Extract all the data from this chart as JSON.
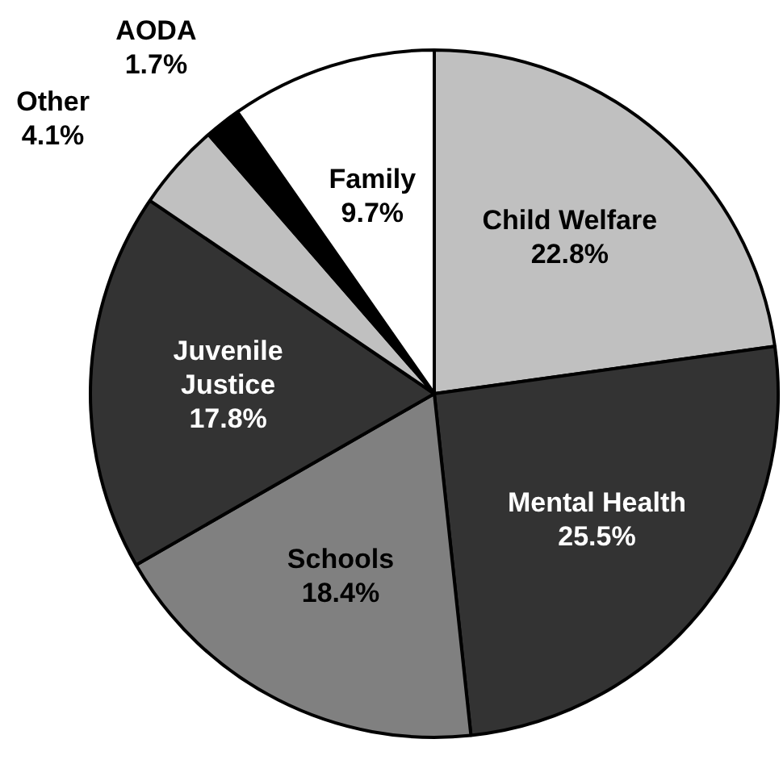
{
  "chart_data": {
    "type": "pie",
    "categories": [
      "Child Welfare",
      "Mental Health",
      "Schools",
      "Juvenile Justice",
      "Other",
      "AODA",
      "Family"
    ],
    "values": [
      22.8,
      25.5,
      18.4,
      17.8,
      4.1,
      1.7,
      9.7
    ],
    "colors": [
      "#c0c0c0",
      "#333333",
      "#808080",
      "#333333",
      "#c0c0c0",
      "#000000",
      "#ffffff"
    ],
    "value_labels": [
      "22.8%",
      "25.5%",
      "18.4%",
      "17.8%",
      "4.1%",
      "1.7%",
      "9.7%"
    ],
    "legend": false
  }
}
